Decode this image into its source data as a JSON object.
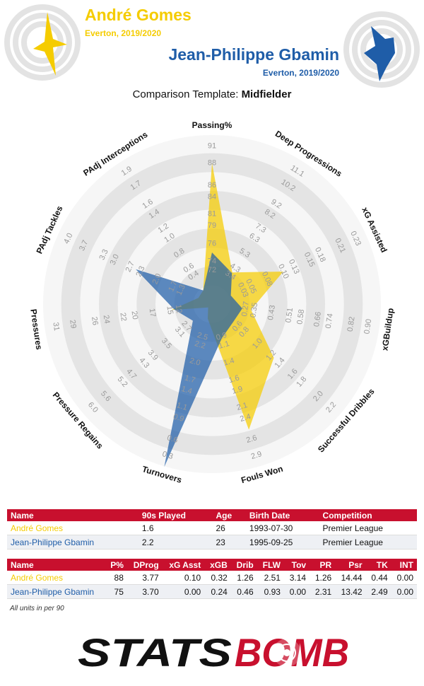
{
  "colors": {
    "player1": "#F5CC00",
    "player2": "#1F5DA8",
    "header_red": "#C8102E",
    "ring": "#e6e6e6",
    "grid_line": "#999999",
    "tick_text": "#9a9a9a"
  },
  "player1": {
    "name": "André Gomes",
    "subtitle": "Everton, 2019/2020",
    "icon": "player-silhouette-icon"
  },
  "player2": {
    "name": "Jean-Philippe Gbamin",
    "subtitle": "Everton, 2019/2020",
    "icon": "player-silhouette-icon"
  },
  "template": {
    "prefix": "Comparison Template: ",
    "value": "Midfielder"
  },
  "chart_data": {
    "type": "radar",
    "axes": [
      {
        "label": "Passing%",
        "ticks": [
          "72",
          "74",
          "76",
          "79",
          "81",
          "84",
          "86",
          "88",
          "91"
        ]
      },
      {
        "label": "Deep Progressions",
        "ticks": [
          "3.4",
          "4.3",
          "5.3",
          "6.3",
          "7.3",
          "8.2",
          "9.2",
          "10.2",
          "11.1"
        ]
      },
      {
        "label": "xG Assisted",
        "ticks": [
          "0.03",
          "0.05",
          "0.08",
          "0.10",
          "0.13",
          "0.15",
          "0.18",
          "0.21",
          "0.23"
        ]
      },
      {
        "label": "xGBuildup",
        "ticks": [
          "0.27",
          "0.35",
          "0.43",
          "0.51",
          "0.58",
          "0.66",
          "0.74",
          "0.82",
          "0.90"
        ]
      },
      {
        "label": "Successful Dribbles",
        "ticks": [
          "0.6",
          "0.8",
          "1.0",
          "1.2",
          "1.4",
          "1.6",
          "1.8",
          "2.0",
          "2.2"
        ]
      },
      {
        "label": "Fouls Won",
        "ticks": [
          "0.9",
          "1.1",
          "1.4",
          "1.6",
          "1.9",
          "2.1",
          "2.4",
          "2.6",
          "2.9"
        ]
      },
      {
        "label": "Turnovers",
        "ticks": [
          "2.5",
          "2.2",
          "2.0",
          "1.7",
          "1.4",
          "1.1",
          "0.9",
          "0.6",
          "0.3"
        ]
      },
      {
        "label": "Pressure Regains",
        "ticks": [
          "2.7",
          "3.1",
          "3.5",
          "3.9",
          "4.3",
          "4.7",
          "5.2",
          "5.6",
          "6.0"
        ]
      },
      {
        "label": "Pressures",
        "ticks": [
          "12",
          "15",
          "17",
          "20",
          "22",
          "24",
          "26",
          "29",
          "31"
        ]
      },
      {
        "label": "PAdj Tackles",
        "ticks": [
          "1.3",
          "1.7",
          "2.0",
          "2.3",
          "2.7",
          "3.0",
          "3.3",
          "3.7",
          "4.0"
        ]
      },
      {
        "label": "PAdj Interceptions",
        "ticks": [
          "0.4",
          "0.6",
          "0.8",
          "1.0",
          "1.2",
          "1.4",
          "1.6",
          "1.7",
          "1.9"
        ]
      }
    ],
    "series": [
      {
        "name": "André Gomes",
        "values": [
          88,
          3.77,
          0.1,
          0.32,
          1.26,
          2.51,
          3.14,
          1.26,
          14.44,
          0.44,
          0.0
        ]
      },
      {
        "name": "Jean-Philippe Gbamin",
        "values": [
          75,
          3.7,
          0.0,
          0.24,
          0.46,
          0.93,
          0.0,
          2.31,
          13.42,
          2.49,
          0.0
        ]
      }
    ],
    "radial_levels": [
      0.2,
      0.252,
      0.356,
      0.462,
      0.53,
      0.63,
      0.7,
      0.83,
      0.93
    ]
  },
  "table1": {
    "headers": [
      "Name",
      "90s Played",
      "Age",
      "Birth Date",
      "Competition"
    ],
    "rows": [
      [
        "André Gomes",
        "1.6",
        "26",
        "1993-07-30",
        "Premier League"
      ],
      [
        "Jean-Philippe Gbamin",
        "2.2",
        "23",
        "1995-09-25",
        "Premier League"
      ]
    ]
  },
  "table2": {
    "headers": [
      "Name",
      "P%",
      "DProg",
      "xG Asst",
      "xGB",
      "Drib",
      "FLW",
      "Tov",
      "PR",
      "Psr",
      "TK",
      "INT"
    ],
    "rows": [
      [
        "André Gomes",
        "88",
        "3.77",
        "0.10",
        "0.32",
        "1.26",
        "2.51",
        "3.14",
        "1.26",
        "14.44",
        "0.44",
        "0.00"
      ],
      [
        "Jean-Philippe Gbamin",
        "75",
        "3.70",
        "0.00",
        "0.24",
        "0.46",
        "0.93",
        "0.00",
        "2.31",
        "13.42",
        "2.49",
        "0.00"
      ]
    ]
  },
  "footnote": "All units in per 90",
  "logo": {
    "text_left": "STATS",
    "text_right": "BOMB"
  }
}
